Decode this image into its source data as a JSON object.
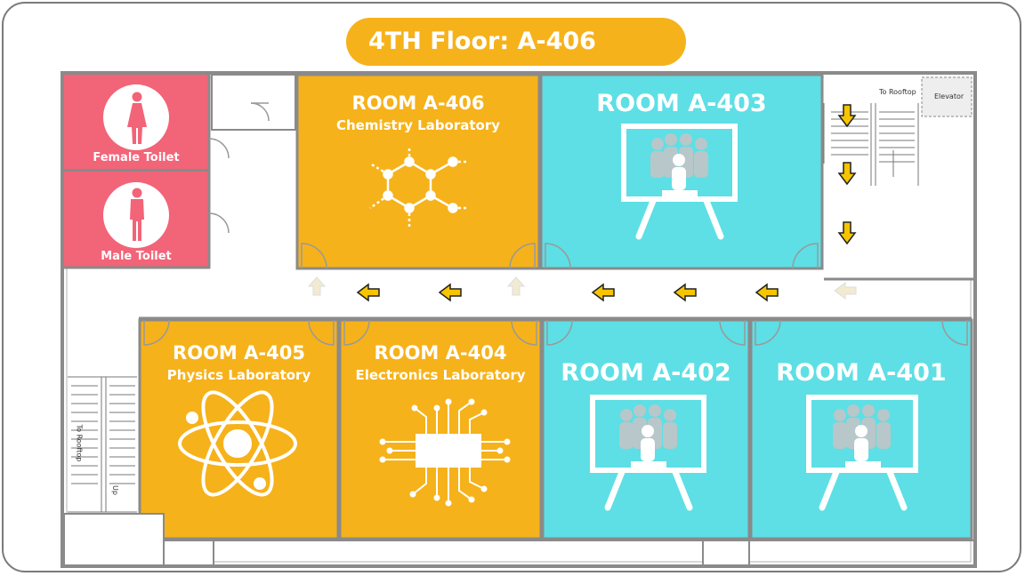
{
  "header": {
    "title": "4TH Floor: A-406"
  },
  "rooms": [
    {
      "id": "A-406",
      "title": "ROOM A-406",
      "subtitle": "Chemistry Laboratory",
      "kind": "lab"
    },
    {
      "id": "A-403",
      "title": "ROOM A-403",
      "subtitle": "",
      "kind": "classroom"
    },
    {
      "id": "A-405",
      "title": "ROOM A-405",
      "subtitle": "Physics Laboratory",
      "kind": "lab"
    },
    {
      "id": "A-404",
      "title": "ROOM A-404",
      "subtitle": "Electronics Laboratory",
      "kind": "lab"
    },
    {
      "id": "A-402",
      "title": "ROOM A-402",
      "subtitle": "",
      "kind": "classroom"
    },
    {
      "id": "A-401",
      "title": "ROOM A-401",
      "subtitle": "",
      "kind": "classroom"
    }
  ],
  "toilets": {
    "female": "Female Toilet",
    "male": "Male Toilet"
  },
  "labels": {
    "to_rooftop_top": "To Rooftop",
    "elevator": "Elevator",
    "to_rooftop_left": "To Rooftop",
    "up": "Up"
  },
  "colors": {
    "lab": "#f6b21a",
    "classroom": "#5ddfe5",
    "toilet": "#f26478",
    "wall": "#8a8a8a",
    "arrow": "#f7c500"
  }
}
